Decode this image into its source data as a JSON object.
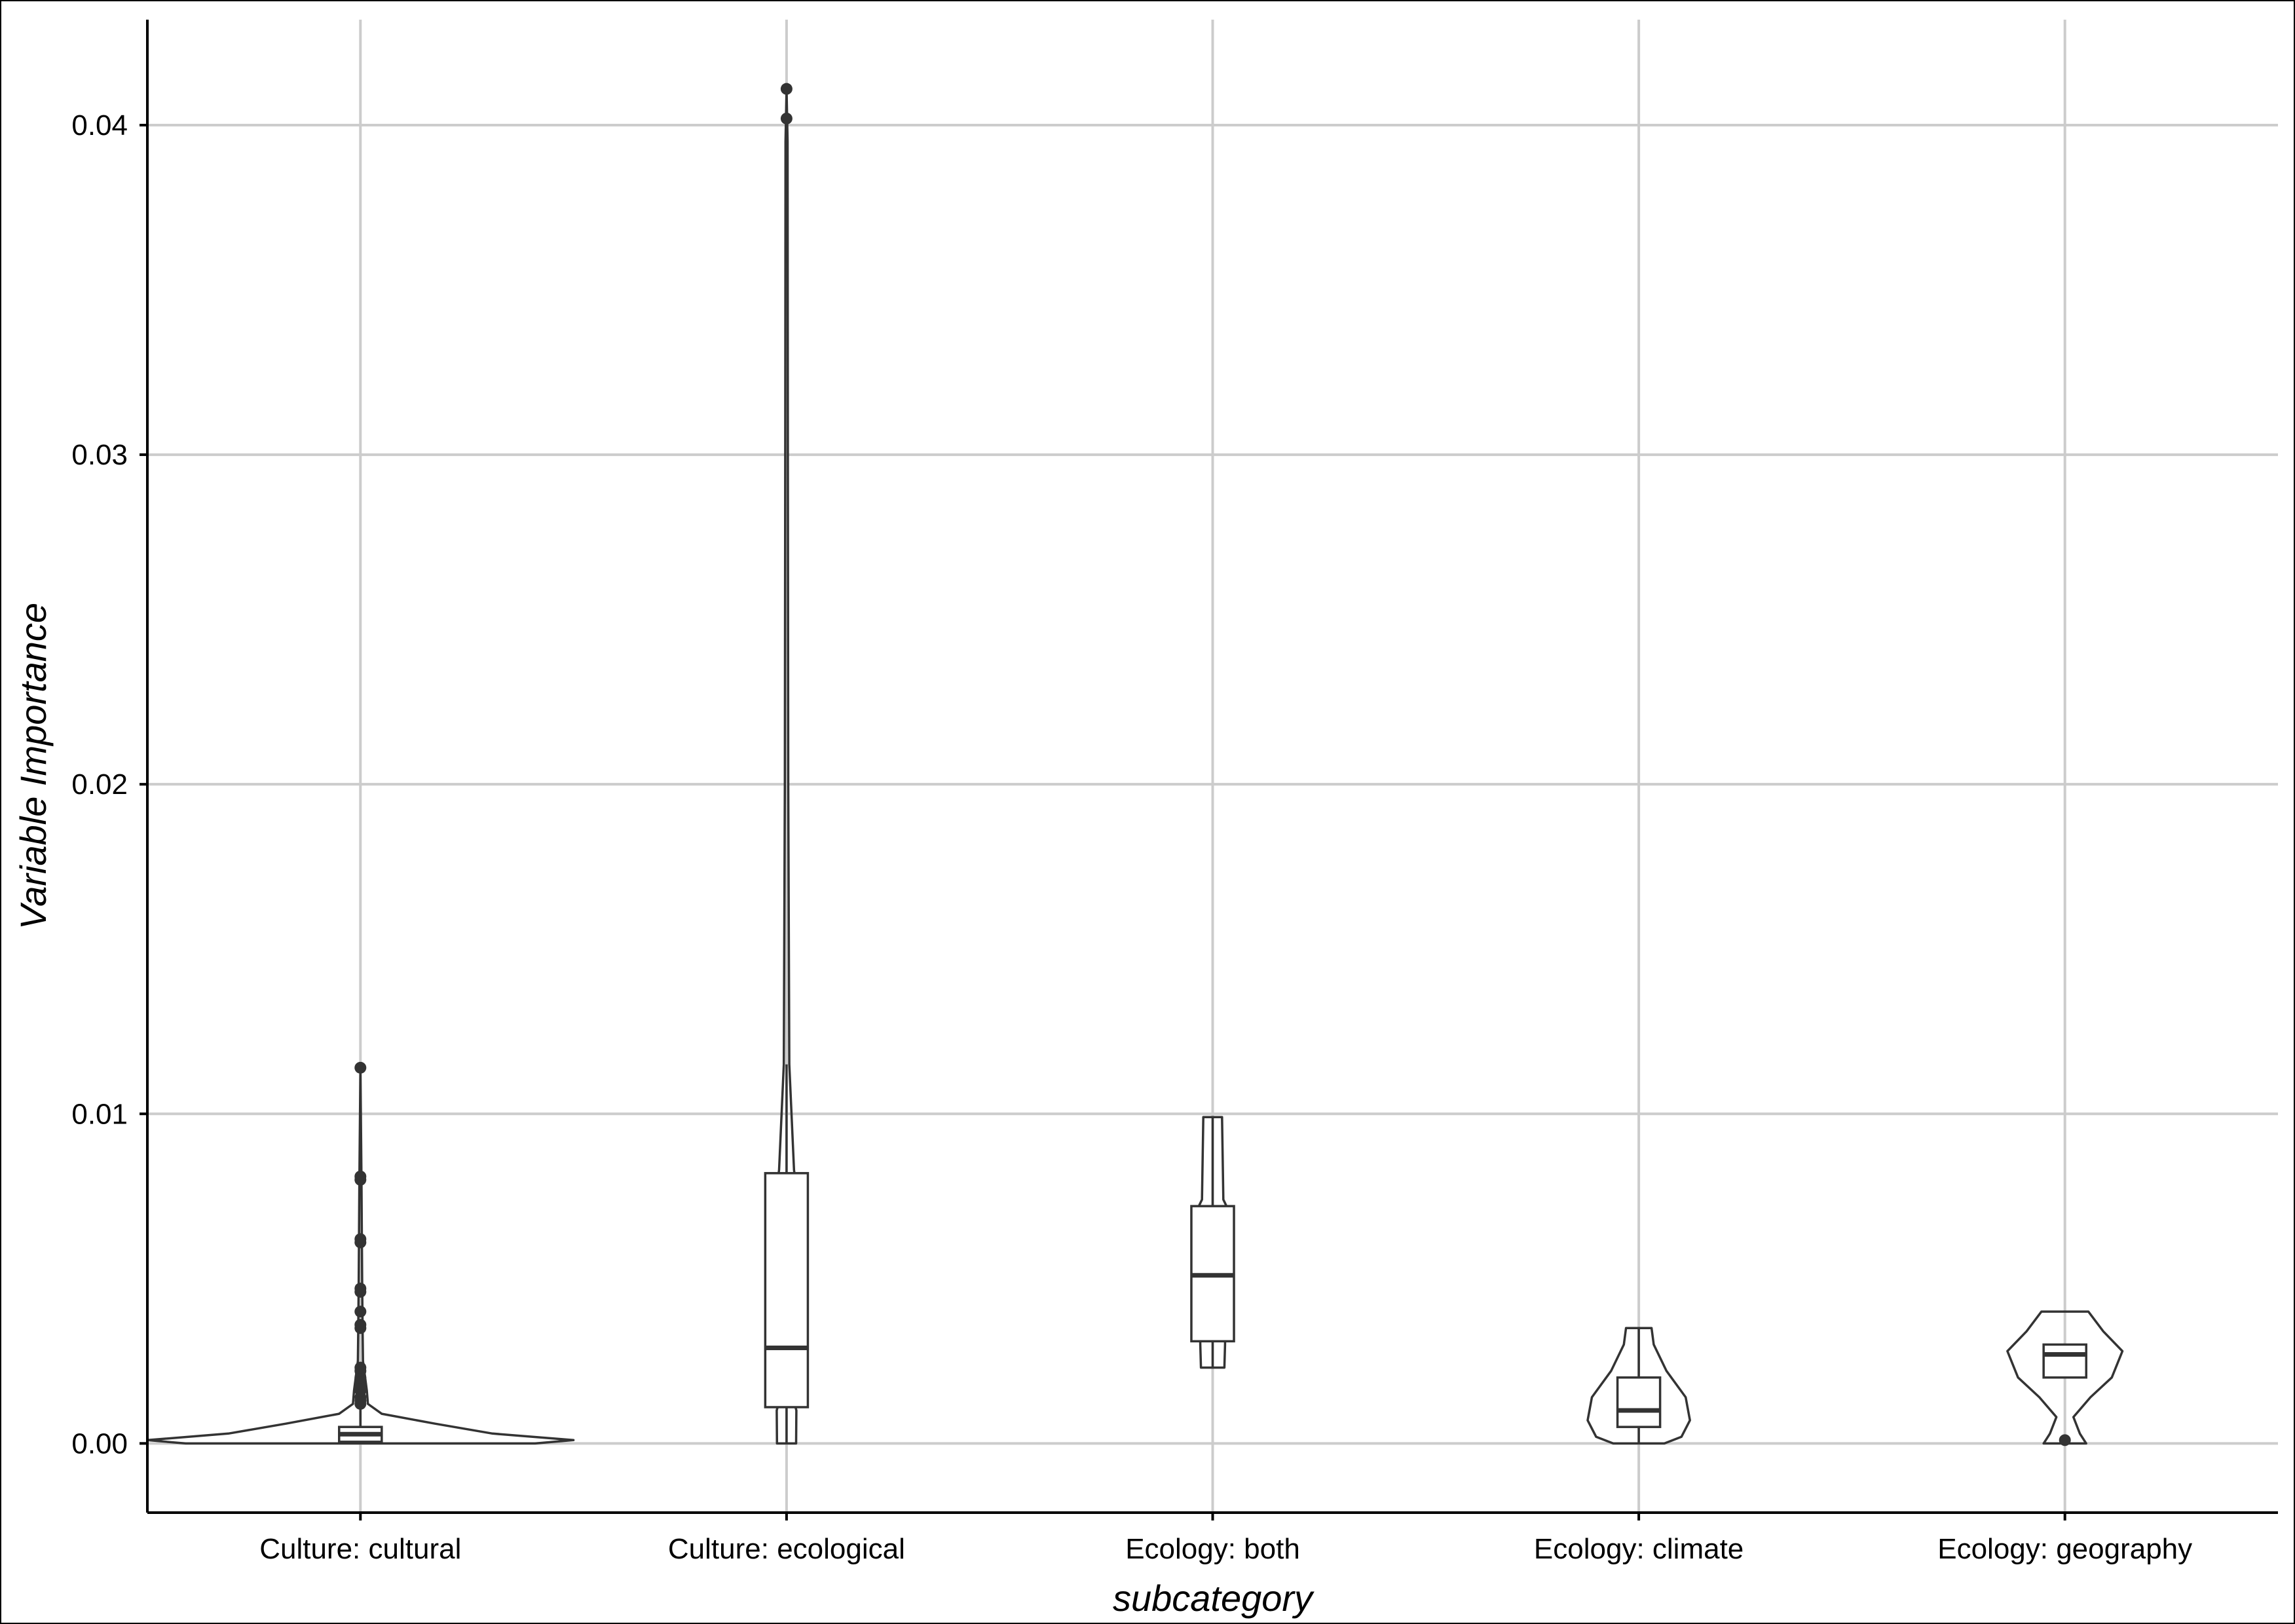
{
  "chart_data": {
    "type": "violin",
    "xlabel": "subcategory",
    "ylabel": "Variable Importance",
    "ylim": [
      -0.0021,
      0.0432
    ],
    "yticks": [
      "0.00",
      "0.01",
      "0.02",
      "0.03",
      "0.04"
    ],
    "grid": true,
    "categories": [
      "Culture: cultural",
      "Culture: ecological",
      "Ecology: both",
      "Ecology: climate",
      "Ecology: geography"
    ],
    "groups": [
      {
        "category": "Culture: cultural",
        "box": {
          "lower_whisker": 0.0,
          "q1": 5e-05,
          "median": 0.00028,
          "q3": 0.0005,
          "upper_whisker": 0.0011
        },
        "outliers": [
          0.0012,
          0.0013,
          0.0014,
          0.0016,
          0.0018,
          0.002,
          0.0022,
          0.0023,
          0.0035,
          0.0036,
          0.004,
          0.0046,
          0.0047,
          0.0061,
          0.0062,
          0.008,
          0.0081,
          0.0114
        ],
        "violin_profile": [
          [
            0.0,
            0.82
          ],
          [
            0.0001,
            1.0
          ],
          [
            0.0003,
            0.62
          ],
          [
            0.0006,
            0.35
          ],
          [
            0.0009,
            0.1
          ],
          [
            0.0012,
            0.035
          ],
          [
            0.0016,
            0.03
          ],
          [
            0.0025,
            0.012
          ],
          [
            0.0035,
            0.01
          ],
          [
            0.005,
            0.008
          ],
          [
            0.008,
            0.005
          ],
          [
            0.0114,
            0.0
          ]
        ]
      },
      {
        "category": "Culture: ecological",
        "box": {
          "lower_whisker": 0.0,
          "q1": 0.0011,
          "median": 0.0029,
          "q3": 0.0082,
          "upper_whisker": 0.0115
        },
        "outliers": [
          0.0402,
          0.0411
        ],
        "violin_profile": [
          [
            0.0,
            0.045
          ],
          [
            0.001,
            0.046
          ],
          [
            0.0011,
            0.042
          ],
          [
            0.008,
            0.041
          ],
          [
            0.0083,
            0.035
          ],
          [
            0.0115,
            0.013
          ],
          [
            0.02,
            0.008
          ],
          [
            0.03,
            0.006
          ],
          [
            0.0395,
            0.005
          ],
          [
            0.0411,
            0.0
          ]
        ]
      },
      {
        "category": "Ecology: both",
        "box": {
          "lower_whisker": 0.0023,
          "q1": 0.0031,
          "median": 0.0051,
          "q3": 0.0072,
          "upper_whisker": 0.0099
        },
        "outliers": [],
        "violin_profile": [
          [
            0.0023,
            0.055
          ],
          [
            0.003,
            0.058
          ],
          [
            0.0072,
            0.065
          ],
          [
            0.0074,
            0.05
          ],
          [
            0.0099,
            0.044
          ]
        ]
      },
      {
        "category": "Ecology: climate",
        "box": {
          "lower_whisker": 0.0,
          "q1": 0.0005,
          "median": 0.001,
          "q3": 0.002,
          "upper_whisker": 0.0035
        },
        "outliers": [],
        "violin_profile": [
          [
            0.0,
            0.12
          ],
          [
            0.0002,
            0.2
          ],
          [
            0.0007,
            0.24
          ],
          [
            0.0014,
            0.22
          ],
          [
            0.0022,
            0.13
          ],
          [
            0.003,
            0.07
          ],
          [
            0.0035,
            0.06
          ]
        ]
      },
      {
        "category": "Ecology: geography",
        "box": {
          "lower_whisker": 0.002,
          "q1": 0.002,
          "median": 0.0027,
          "q3": 0.003,
          "upper_whisker": 0.003
        },
        "outliers": [
          0.0001
        ],
        "violin_profile": [
          [
            0.0,
            0.1
          ],
          [
            0.0003,
            0.07
          ],
          [
            0.0008,
            0.04
          ],
          [
            0.0014,
            0.12
          ],
          [
            0.002,
            0.22
          ],
          [
            0.0028,
            0.27
          ],
          [
            0.0034,
            0.18
          ],
          [
            0.004,
            0.11
          ]
        ]
      }
    ]
  }
}
